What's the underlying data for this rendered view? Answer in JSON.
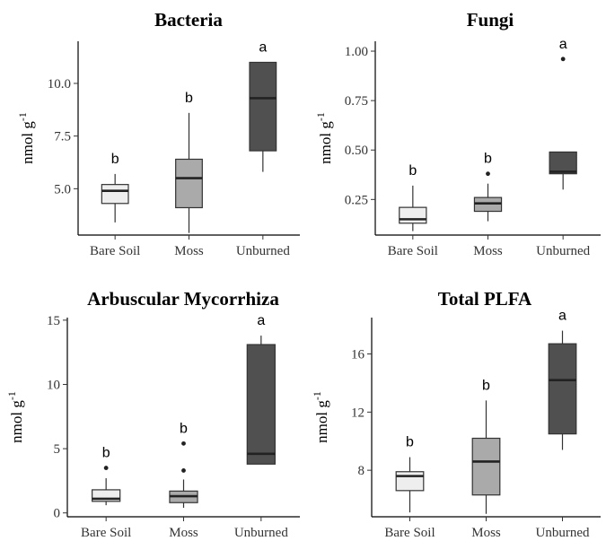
{
  "chart_data": [
    {
      "type": "box",
      "title": "Bacteria",
      "ylabel": "nmol g",
      "ylabel_sup": "-1",
      "categories": [
        "Bare Soil",
        "Moss",
        "Unburned"
      ],
      "ylim": [
        2.8,
        12.0
      ],
      "yticks": [
        5.0,
        7.5,
        10.0
      ],
      "ytick_labels": [
        "5.0",
        "7.5",
        "10.0"
      ],
      "boxes": [
        {
          "min": 3.4,
          "q1": 4.3,
          "median": 4.9,
          "q3": 5.2,
          "max": 5.7,
          "outliers": [],
          "letter": "b",
          "color": "#eeeeee"
        },
        {
          "min": 2.9,
          "q1": 4.1,
          "median": 5.5,
          "q3": 6.4,
          "max": 8.6,
          "outliers": [],
          "letter": "b",
          "color": "#aaaaaa"
        },
        {
          "min": 5.8,
          "q1": 6.8,
          "median": 9.3,
          "q3": 11.0,
          "max": 11.0,
          "outliers": [],
          "letter": "a",
          "color": "#505050"
        }
      ]
    },
    {
      "type": "box",
      "title": "Fungi",
      "ylabel": "nmol g",
      "ylabel_sup": "-1",
      "categories": [
        "Bare Soil",
        "Moss",
        "Unburned"
      ],
      "ylim": [
        0.07,
        1.05
      ],
      "yticks": [
        0.25,
        0.5,
        0.75,
        1.0
      ],
      "ytick_labels": [
        "0.25",
        "0.50",
        "0.75",
        "1.00"
      ],
      "boxes": [
        {
          "min": 0.09,
          "q1": 0.13,
          "median": 0.15,
          "q3": 0.21,
          "max": 0.32,
          "outliers": [],
          "letter": "b",
          "color": "#eeeeee"
        },
        {
          "min": 0.14,
          "q1": 0.19,
          "median": 0.23,
          "q3": 0.26,
          "max": 0.33,
          "outliers": [
            0.38
          ],
          "letter": "b",
          "color": "#aaaaaa"
        },
        {
          "min": 0.3,
          "q1": 0.38,
          "median": 0.39,
          "q3": 0.49,
          "max": 0.49,
          "outliers": [
            0.96
          ],
          "letter": "a",
          "color": "#505050"
        }
      ]
    },
    {
      "type": "box",
      "title": "Arbuscular Mycorrhiza",
      "ylabel": "nmol g",
      "ylabel_sup": "-1",
      "categories": [
        "Bare Soil",
        "Moss",
        "Unburned"
      ],
      "ylim": [
        -0.3,
        15.2
      ],
      "yticks": [
        0,
        5,
        10,
        15
      ],
      "ytick_labels": [
        "0",
        "5",
        "10",
        "15"
      ],
      "boxes": [
        {
          "min": 0.6,
          "q1": 0.9,
          "median": 1.1,
          "q3": 1.8,
          "max": 2.7,
          "outliers": [
            3.5
          ],
          "letter": "b",
          "color": "#eeeeee"
        },
        {
          "min": 0.4,
          "q1": 0.8,
          "median": 1.3,
          "q3": 1.7,
          "max": 2.6,
          "outliers": [
            3.3,
            5.4
          ],
          "letter": "b",
          "color": "#aaaaaa"
        },
        {
          "min": 3.8,
          "q1": 3.8,
          "median": 4.6,
          "q3": 13.1,
          "max": 13.8,
          "outliers": [],
          "letter": "a",
          "color": "#505050"
        }
      ]
    },
    {
      "type": "box",
      "title": "Total PLFA",
      "ylabel": "nmol g",
      "ylabel_sup": "-1",
      "categories": [
        "Bare Soil",
        "Moss",
        "Unburned"
      ],
      "ylim": [
        4.8,
        18.5
      ],
      "yticks": [
        8,
        12,
        16
      ],
      "ytick_labels": [
        "8",
        "12",
        "16"
      ],
      "boxes": [
        {
          "min": 5.1,
          "q1": 6.6,
          "median": 7.6,
          "q3": 7.9,
          "max": 8.9,
          "outliers": [],
          "letter": "b",
          "color": "#eeeeee"
        },
        {
          "min": 5.0,
          "q1": 6.3,
          "median": 8.6,
          "q3": 10.2,
          "max": 12.8,
          "outliers": [],
          "letter": "b",
          "color": "#aaaaaa"
        },
        {
          "min": 9.4,
          "q1": 10.5,
          "median": 14.2,
          "q3": 16.7,
          "max": 17.6,
          "outliers": [],
          "letter": "a",
          "color": "#505050"
        }
      ]
    }
  ]
}
